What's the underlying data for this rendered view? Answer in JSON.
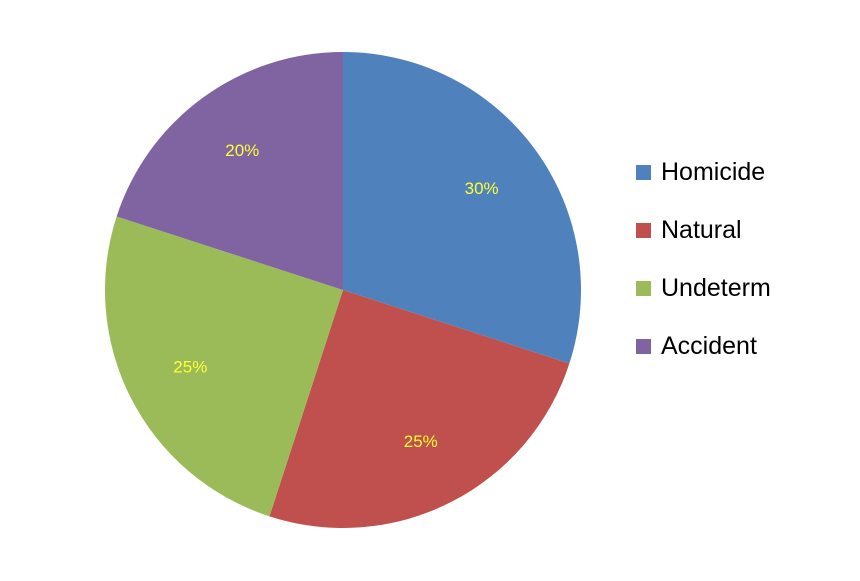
{
  "chart_data": {
    "type": "pie",
    "categories": [
      "Homicide",
      "Natural",
      "Undeterm",
      "Accident"
    ],
    "values": [
      30,
      25,
      25,
      20
    ],
    "labels": [
      "30%",
      "25%",
      "25%",
      "20%"
    ],
    "colors": [
      "#4f81bd",
      "#c0504d",
      "#9bbb59",
      "#8064a2"
    ],
    "label_color": "#ffff33",
    "start_angle_deg": 0,
    "direction": "clockwise",
    "legend_position": "right"
  }
}
